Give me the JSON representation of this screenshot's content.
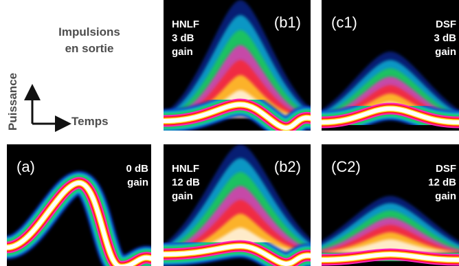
{
  "header": {
    "title_lines": [
      "Impulsions",
      "en sortie"
    ]
  },
  "axes": {
    "y_label": "Puissance",
    "x_label": "Temps"
  },
  "panels": [
    {
      "id": "(a)",
      "note_lines": [
        "0 dB",
        "gain"
      ]
    },
    {
      "id": "(b1)",
      "note_lines": [
        "HNLF",
        "3 dB",
        "gain"
      ]
    },
    {
      "id": "(c1)",
      "note_lines": [
        "DSF",
        "3 dB",
        "gain"
      ]
    },
    {
      "id": "(b2)",
      "note_lines": [
        "HNLF",
        "12 dB",
        "gain"
      ]
    },
    {
      "id": "(C2)",
      "note_lines": [
        "DSF",
        "12 dB",
        "gain"
      ]
    }
  ]
}
